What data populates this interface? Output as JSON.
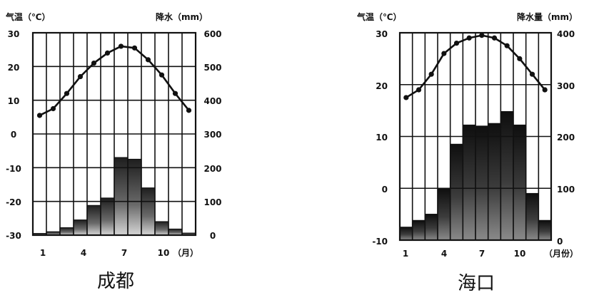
{
  "chart_data": [
    {
      "type": "bar+line",
      "title": "成都",
      "left_axis_label": "气温（℃）",
      "right_axis_label": "降水（mm）",
      "month_axis_suffix": "（月）",
      "months": [
        1,
        2,
        3,
        4,
        5,
        6,
        7,
        8,
        9,
        10,
        11,
        12
      ],
      "month_tick_labels": [
        "1",
        "4",
        "7",
        "10"
      ],
      "temp_ylim": [
        -30,
        30
      ],
      "temp_ticks": [
        "30",
        "20",
        "10",
        "0",
        "-10",
        "-20",
        "-30"
      ],
      "precip_ylim": [
        0,
        600
      ],
      "precip_ticks": [
        "600",
        "500",
        "400",
        "300",
        "200",
        "100",
        "0"
      ],
      "series": [
        {
          "name": "气温",
          "kind": "line",
          "axis": "left",
          "values": [
            5.5,
            7.5,
            12,
            17,
            21,
            24,
            26,
            25.5,
            22,
            17.5,
            12,
            7
          ]
        },
        {
          "name": "降水",
          "kind": "bar",
          "axis": "right",
          "values": [
            5,
            10,
            22,
            45,
            88,
            110,
            230,
            225,
            140,
            40,
            18,
            6
          ]
        }
      ]
    },
    {
      "type": "bar+line",
      "title": "海口",
      "left_axis_label": "气温（℃）",
      "right_axis_label": "降水量（mm）",
      "month_axis_suffix": "（月份）",
      "months": [
        1,
        2,
        3,
        4,
        5,
        6,
        7,
        8,
        9,
        10,
        11,
        12
      ],
      "month_tick_labels": [
        "1",
        "4",
        "7",
        "10"
      ],
      "temp_ylim": [
        -10,
        30
      ],
      "temp_ticks": [
        "30",
        "20",
        "10",
        "0",
        "-10"
      ],
      "precip_ylim": [
        0,
        400
      ],
      "precip_ticks": [
        "400",
        "300",
        "200",
        "100",
        "0"
      ],
      "series": [
        {
          "name": "气温",
          "kind": "line",
          "axis": "left",
          "values": [
            17.5,
            19,
            22,
            26,
            28,
            29,
            29.5,
            29,
            27.5,
            25,
            22,
            19
          ]
        },
        {
          "name": "降水",
          "kind": "bar",
          "axis": "right",
          "values": [
            25,
            38,
            50,
            100,
            185,
            222,
            220,
            225,
            248,
            222,
            90,
            38
          ]
        }
      ]
    }
  ]
}
